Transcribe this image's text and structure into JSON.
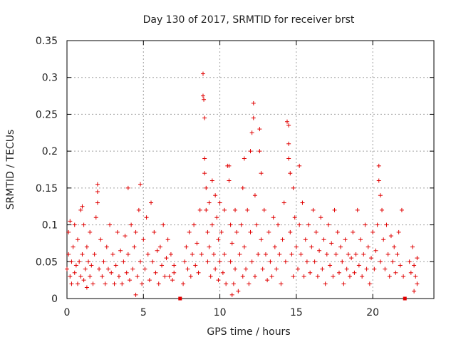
{
  "chart_data": {
    "type": "scatter",
    "title": "Day 130 of 2017, SRMTID for receiver brst",
    "xlabel": "GPS time / hours",
    "ylabel": "SRMTID / TECUs",
    "xlim": [
      0,
      24
    ],
    "ylim": [
      0,
      0.35
    ],
    "x_ticks": [
      0,
      5,
      10,
      15,
      20
    ],
    "x_tick_labels": [
      "0",
      "5",
      "10",
      "15",
      "20"
    ],
    "y_ticks": [
      0,
      0.05,
      0.1,
      0.15,
      0.2,
      0.25,
      0.3,
      0.35
    ],
    "y_tick_labels": [
      "0",
      "0.05",
      "0.1",
      "0.15",
      "0.2",
      "0.25",
      "0.3",
      "0.35"
    ],
    "grid": true,
    "marker": "+",
    "series_color": "#e00000",
    "gap_markers_x": [
      7.4,
      22.1
    ],
    "series": [
      {
        "name": "SRMTID",
        "points": [
          [
            0.0,
            0.04
          ],
          [
            0.1,
            0.09
          ],
          [
            0.1,
            0.06
          ],
          [
            0.2,
            0.03
          ],
          [
            0.2,
            0.105
          ],
          [
            0.3,
            0.05
          ],
          [
            0.3,
            0.02
          ],
          [
            0.4,
            0.07
          ],
          [
            0.5,
            0.035
          ],
          [
            0.5,
            0.1
          ],
          [
            0.6,
            0.045
          ],
          [
            0.7,
            0.02
          ],
          [
            0.7,
            0.08
          ],
          [
            0.8,
            0.05
          ],
          [
            0.9,
            0.03
          ],
          [
            0.9,
            0.12
          ],
          [
            1.0,
            0.125
          ],
          [
            1.0,
            0.06
          ],
          [
            1.1,
            0.025
          ],
          [
            1.1,
            0.1
          ],
          [
            1.2,
            0.04
          ],
          [
            1.3,
            0.015
          ],
          [
            1.3,
            0.07
          ],
          [
            1.4,
            0.05
          ],
          [
            1.5,
            0.03
          ],
          [
            1.5,
            0.09
          ],
          [
            1.6,
            0.045
          ],
          [
            1.7,
            0.02
          ],
          [
            1.8,
            0.06
          ],
          [
            1.9,
            0.11
          ],
          [
            2.0,
            0.155
          ],
          [
            2.0,
            0.145
          ],
          [
            2.0,
            0.13
          ],
          [
            2.1,
            0.04
          ],
          [
            2.2,
            0.08
          ],
          [
            2.3,
            0.03
          ],
          [
            2.4,
            0.05
          ],
          [
            2.5,
            0.02
          ],
          [
            2.6,
            0.07
          ],
          [
            2.7,
            0.04
          ],
          [
            2.8,
            0.1
          ],
          [
            2.9,
            0.035
          ],
          [
            3.0,
            0.06
          ],
          [
            3.1,
            0.02
          ],
          [
            3.2,
            0.045
          ],
          [
            3.3,
            0.09
          ],
          [
            3.4,
            0.03
          ],
          [
            3.5,
            0.065
          ],
          [
            3.6,
            0.02
          ],
          [
            3.7,
            0.05
          ],
          [
            3.8,
            0.085
          ],
          [
            3.9,
            0.035
          ],
          [
            4.0,
            0.15
          ],
          [
            4.0,
            0.06
          ],
          [
            4.1,
            0.025
          ],
          [
            4.2,
            0.1
          ],
          [
            4.3,
            0.04
          ],
          [
            4.4,
            0.07
          ],
          [
            4.5,
            0.005
          ],
          [
            4.5,
            0.09
          ],
          [
            4.6,
            0.03
          ],
          [
            4.7,
            0.12
          ],
          [
            4.8,
            0.155
          ],
          [
            4.8,
            0.05
          ],
          [
            4.9,
            0.02
          ],
          [
            5.0,
            0.08
          ],
          [
            5.1,
            0.04
          ],
          [
            5.2,
            0.11
          ],
          [
            5.3,
            0.06
          ],
          [
            5.4,
            0.025
          ],
          [
            5.5,
            0.13
          ],
          [
            5.6,
            0.05
          ],
          [
            5.7,
            0.09
          ],
          [
            5.8,
            0.035
          ],
          [
            5.9,
            0.065
          ],
          [
            6.0,
            0.02
          ],
          [
            6.1,
            0.07
          ],
          [
            6.2,
            0.045
          ],
          [
            6.3,
            0.1
          ],
          [
            6.4,
            0.03
          ],
          [
            6.5,
            0.055
          ],
          [
            6.6,
            0.08
          ],
          [
            6.7,
            0.03
          ],
          [
            6.8,
            0.06
          ],
          [
            6.9,
            0.025
          ],
          [
            7.0,
            0.045
          ],
          [
            7.0,
            0.035
          ],
          [
            7.6,
            0.02
          ],
          [
            7.7,
            0.05
          ],
          [
            7.8,
            0.07
          ],
          [
            7.9,
            0.04
          ],
          [
            8.0,
            0.09
          ],
          [
            8.1,
            0.03
          ],
          [
            8.2,
            0.06
          ],
          [
            8.3,
            0.1
          ],
          [
            8.4,
            0.045
          ],
          [
            8.5,
            0.075
          ],
          [
            8.6,
            0.035
          ],
          [
            8.7,
            0.12
          ],
          [
            8.8,
            0.06
          ],
          [
            8.9,
            0.305
          ],
          [
            8.9,
            0.275
          ],
          [
            8.95,
            0.27
          ],
          [
            9.0,
            0.245
          ],
          [
            9.0,
            0.19
          ],
          [
            9.0,
            0.17
          ],
          [
            9.1,
            0.15
          ],
          [
            9.1,
            0.12
          ],
          [
            9.2,
            0.09
          ],
          [
            9.2,
            0.05
          ],
          [
            9.3,
            0.13
          ],
          [
            9.3,
            0.07
          ],
          [
            9.4,
            0.03
          ],
          [
            9.5,
            0.16
          ],
          [
            9.5,
            0.1
          ],
          [
            9.6,
            0.06
          ],
          [
            9.7,
            0.14
          ],
          [
            9.7,
            0.04
          ],
          [
            9.8,
            0.11
          ],
          [
            9.9,
            0.08
          ],
          [
            9.9,
            0.025
          ],
          [
            10.0,
            0.13
          ],
          [
            10.0,
            0.05
          ],
          [
            10.1,
            0.09
          ],
          [
            10.2,
            0.035
          ],
          [
            10.3,
            0.12
          ],
          [
            10.3,
            0.06
          ],
          [
            10.4,
            0.02
          ],
          [
            10.5,
            0.18
          ],
          [
            10.6,
            0.18
          ],
          [
            10.6,
            0.16
          ],
          [
            10.7,
            0.1
          ],
          [
            10.7,
            0.05
          ],
          [
            10.8,
            0.005
          ],
          [
            10.8,
            0.075
          ],
          [
            10.9,
            0.02
          ],
          [
            11.0,
            0.12
          ],
          [
            11.0,
            0.04
          ],
          [
            11.1,
            0.09
          ],
          [
            11.2,
            0.01
          ],
          [
            11.3,
            0.06
          ],
          [
            11.4,
            0.1
          ],
          [
            11.5,
            0.03
          ],
          [
            11.5,
            0.15
          ],
          [
            11.6,
            0.19
          ],
          [
            11.6,
            0.07
          ],
          [
            11.7,
            0.04
          ],
          [
            11.8,
            0.12
          ],
          [
            11.9,
            0.02
          ],
          [
            12.0,
            0.09
          ],
          [
            12.0,
            0.2
          ],
          [
            12.1,
            0.225
          ],
          [
            12.1,
            0.05
          ],
          [
            12.2,
            0.265
          ],
          [
            12.2,
            0.245
          ],
          [
            12.3,
            0.14
          ],
          [
            12.3,
            0.03
          ],
          [
            12.4,
            0.1
          ],
          [
            12.5,
            0.06
          ],
          [
            12.6,
            0.23
          ],
          [
            12.6,
            0.2
          ],
          [
            12.7,
            0.17
          ],
          [
            12.7,
            0.08
          ],
          [
            12.8,
            0.04
          ],
          [
            12.9,
            0.12
          ],
          [
            13.0,
            0.06
          ],
          [
            13.1,
            0.025
          ],
          [
            13.2,
            0.09
          ],
          [
            13.3,
            0.05
          ],
          [
            13.4,
            0.03
          ],
          [
            13.5,
            0.11
          ],
          [
            13.6,
            0.07
          ],
          [
            13.7,
            0.04
          ],
          [
            13.8,
            0.1
          ],
          [
            13.9,
            0.06
          ],
          [
            14.0,
            0.02
          ],
          [
            14.1,
            0.08
          ],
          [
            14.2,
            0.13
          ],
          [
            14.3,
            0.05
          ],
          [
            14.4,
            0.24
          ],
          [
            14.5,
            0.235
          ],
          [
            14.5,
            0.21
          ],
          [
            14.5,
            0.19
          ],
          [
            14.6,
            0.17
          ],
          [
            14.6,
            0.09
          ],
          [
            14.7,
            0.06
          ],
          [
            14.8,
            0.15
          ],
          [
            14.8,
            0.03
          ],
          [
            14.9,
            0.11
          ],
          [
            15.0,
            0.07
          ],
          [
            15.1,
            0.04
          ],
          [
            15.2,
            0.18
          ],
          [
            15.2,
            0.1
          ],
          [
            15.3,
            0.06
          ],
          [
            15.4,
            0.13
          ],
          [
            15.5,
            0.03
          ],
          [
            15.6,
            0.08
          ],
          [
            15.7,
            0.05
          ],
          [
            15.8,
            0.1
          ],
          [
            15.9,
            0.035
          ],
          [
            16.0,
            0.07
          ],
          [
            16.1,
            0.12
          ],
          [
            16.2,
            0.05
          ],
          [
            16.3,
            0.09
          ],
          [
            16.4,
            0.03
          ],
          [
            16.5,
            0.065
          ],
          [
            16.6,
            0.11
          ],
          [
            16.7,
            0.04
          ],
          [
            16.8,
            0.08
          ],
          [
            16.9,
            0.02
          ],
          [
            17.0,
            0.06
          ],
          [
            17.1,
            0.1
          ],
          [
            17.2,
            0.045
          ],
          [
            17.3,
            0.075
          ],
          [
            17.4,
            0.03
          ],
          [
            17.5,
            0.12
          ],
          [
            17.6,
            0.06
          ],
          [
            17.7,
            0.09
          ],
          [
            17.8,
            0.035
          ],
          [
            17.9,
            0.07
          ],
          [
            18.0,
            0.05
          ],
          [
            18.1,
            0.02
          ],
          [
            18.2,
            0.08
          ],
          [
            18.3,
            0.04
          ],
          [
            18.4,
            0.06
          ],
          [
            18.5,
            0.03
          ],
          [
            18.6,
            0.055
          ],
          [
            18.7,
            0.09
          ],
          [
            18.8,
            0.035
          ],
          [
            18.9,
            0.06
          ],
          [
            19.0,
            0.12
          ],
          [
            19.1,
            0.045
          ],
          [
            19.2,
            0.08
          ],
          [
            19.3,
            0.03
          ],
          [
            19.4,
            0.06
          ],
          [
            19.5,
            0.1
          ],
          [
            19.6,
            0.04
          ],
          [
            19.7,
            0.07
          ],
          [
            19.8,
            0.02
          ],
          [
            19.9,
            0.055
          ],
          [
            20.0,
            0.09
          ],
          [
            20.1,
            0.04
          ],
          [
            20.2,
            0.065
          ],
          [
            20.3,
            0.1
          ],
          [
            20.4,
            0.18
          ],
          [
            20.4,
            0.16
          ],
          [
            20.5,
            0.14
          ],
          [
            20.5,
            0.05
          ],
          [
            20.6,
            0.12
          ],
          [
            20.7,
            0.08
          ],
          [
            20.8,
            0.04
          ],
          [
            20.9,
            0.1
          ],
          [
            21.0,
            0.06
          ],
          [
            21.1,
            0.03
          ],
          [
            21.2,
            0.085
          ],
          [
            21.3,
            0.05
          ],
          [
            21.4,
            0.07
          ],
          [
            21.5,
            0.035
          ],
          [
            21.6,
            0.06
          ],
          [
            21.7,
            0.09
          ],
          [
            21.8,
            0.045
          ],
          [
            21.9,
            0.12
          ],
          [
            22.0,
            0.03
          ],
          [
            22.4,
            0.05
          ],
          [
            22.5,
            0.035
          ],
          [
            22.6,
            0.07
          ],
          [
            22.7,
            0.045
          ],
          [
            22.8,
            0.03
          ],
          [
            22.9,
            0.055
          ],
          [
            22.9,
            0.02
          ],
          [
            22.7,
            0.01
          ]
        ]
      }
    ]
  }
}
